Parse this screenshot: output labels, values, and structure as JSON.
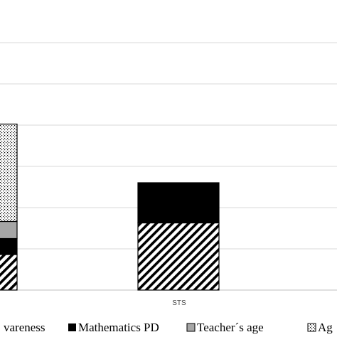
{
  "chart_data": {
    "type": "bar",
    "stacked": true,
    "categories": [
      "",
      "STS"
    ],
    "series": [
      {
        "name": "Awareness",
        "values": [
          100,
          189
        ],
        "pattern": "diagonal-hatch"
      },
      {
        "name": "Mathematics PD",
        "values": [
          45,
          113
        ],
        "color": "#000000"
      },
      {
        "name": "Teacher´s age",
        "values": [
          48,
          0
        ],
        "color": "#a6a6a6"
      },
      {
        "name": "Age",
        "values": [
          274,
          0
        ],
        "pattern": "dotted"
      }
    ],
    "grid": true,
    "legend_position": "bottom",
    "xlabel": "",
    "ylabel": ""
  },
  "legend": {
    "items": [
      {
        "label": "vareness"
      },
      {
        "label": "Mathematics PD"
      },
      {
        "label": "Teacher´s age"
      },
      {
        "label": "Ag"
      }
    ]
  }
}
